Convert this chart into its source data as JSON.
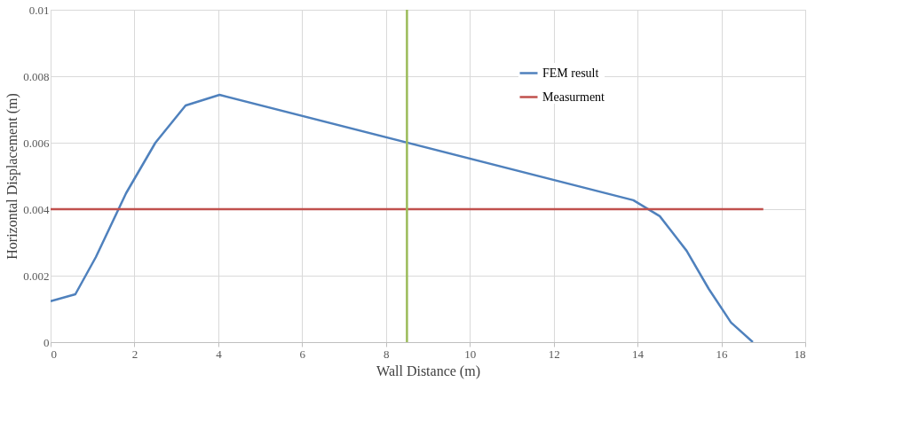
{
  "chart_data": {
    "type": "line",
    "xlabel": "Wall Distance (m)",
    "ylabel": "Horizontal Displacement (m)",
    "xlim": [
      0,
      18
    ],
    "xticks": [
      0,
      2,
      4,
      6,
      8,
      10,
      12,
      14,
      16,
      18
    ],
    "ylim": [
      0,
      0.01
    ],
    "yticks": [
      0,
      0.002,
      0.004,
      0.006,
      0.008,
      0.01
    ],
    "grid": true,
    "legend": "top right",
    "series": [
      {
        "name": "FEM result",
        "color": "#4f81bd",
        "x": [
          0,
          0.59,
          1.08,
          1.8,
          2.5,
          3.22,
          4.03,
          13.9,
          14.53,
          15.17,
          15.7,
          16.23,
          16.75
        ],
        "values": [
          0.00123,
          0.00144,
          0.00256,
          0.00448,
          0.006,
          0.00712,
          0.00744,
          0.00427,
          0.00379,
          0.00275,
          0.0016,
          0.00059,
          0
        ]
      },
      {
        "name": "Measurment",
        "color": "#c0504d",
        "x": [
          0,
          17
        ],
        "values": [
          0.004,
          0.004
        ]
      }
    ],
    "ref_lines": [
      {
        "axis": "x",
        "value": 8.5,
        "color": "#9bbb59"
      }
    ]
  }
}
